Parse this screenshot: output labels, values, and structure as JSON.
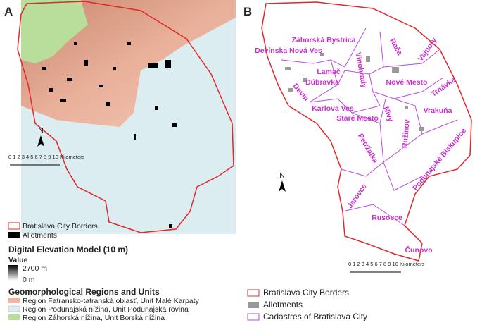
{
  "panel_a": {
    "label": "A",
    "north": "N",
    "scale": "0 1 2 3 4 5 6 7 8 9 10 Kilometers",
    "legend": {
      "borders": "Bratislava City Borders",
      "allotments": "Allotments",
      "dem_title": "Digital Elevation Model (10 m)",
      "dem_value": "Value",
      "dem_high": "2700 m",
      "dem_low": "0 m",
      "regions_title": "Geomorphological Regions and Units",
      "regions": [
        "Region Fatransko-tatranská oblasť, Unit Malé Karpaty",
        "Region Podunajská nížina, Unit Podunajská rovina",
        "Region Záhorská nížina, Unit Borská nížina"
      ]
    }
  },
  "panel_b": {
    "label": "B",
    "north": "N",
    "scale": "0 1 2 3 4 5 6 7 8 9 10 Kilometers",
    "districts": [
      "Záhorská Bystrica",
      "Devínska Nová Ves",
      "Rača",
      "Vajnory",
      "Lamač",
      "Vinohrady",
      "Dúbravka",
      "Nové Mesto",
      "Devín",
      "Trnávka",
      "Karlova Ves",
      "Nivy",
      "Vrakuňa",
      "Staré Mesto",
      "Ružinov",
      "Petržalka",
      "Podunajské Biskupice",
      "Jarovce",
      "Rusovce",
      "Čunovo"
    ],
    "legend": {
      "borders": "Bratislava City Borders",
      "allotments": "Allotments",
      "cadastres": "Cadastres of Bratislava City"
    }
  }
}
